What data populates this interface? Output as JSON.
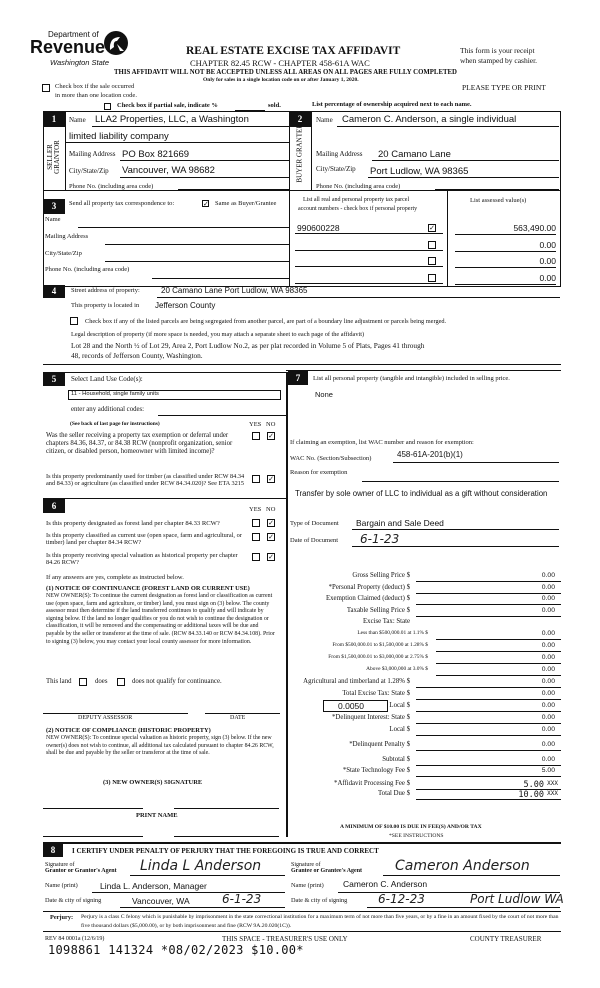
{
  "header": {
    "logo_top": "Department of",
    "logo_main": "Revenue",
    "logo_sub": "Washington State",
    "title": "REAL ESTATE EXCISE TAX AFFIDAVIT",
    "chapter": "CHAPTER 82.45 RCW - CHAPTER 458-61A WAC",
    "warning": "THIS AFFIDAVIT WILL NOT BE ACCEPTED UNLESS ALL AREAS ON ALL PAGES ARE FULLY COMPLETED",
    "only_for": "Only for sales in a single location code on or after January 1, 2020.",
    "receipt_1": "This form is your receipt",
    "receipt_2": "when stamped by cashier.",
    "type_print": "PLEASE TYPE OR PRINT",
    "multi_loc_1": "Check box if the sale occurred",
    "multi_loc_2": "in more than one location code.",
    "partial": "Check box if partial sale, indicate %",
    "sold": "sold.",
    "ownership": "List percentage of ownership acquired next to each name."
  },
  "seller": {
    "num": "1",
    "side_label": "SELLER GRANTOR",
    "name_label": "Name",
    "name_1": "LLA2 Properties, LLC, a Washington",
    "name_2": "limited liability company",
    "mail_label": "Mailing Address",
    "mail": "PO Box 821669",
    "city_label": "City/State/Zip",
    "city": "Vancouver, WA 98682",
    "phone_label": "Phone No. (including area code)",
    "phone": ""
  },
  "buyer": {
    "num": "2",
    "side_label": "BUYER GRANTEE",
    "name_label": "Name",
    "name": "Cameron C. Anderson, a single individual",
    "mail_label": "Mailing Address",
    "mail": "20 Camano Lane",
    "city_label": "City/State/Zip",
    "city": "Port Ludlow, WA  98365",
    "phone_label": "Phone No. (including area code)"
  },
  "tax_corr": {
    "num": "3",
    "label": "Send all property tax correspondence to:",
    "same_checked": true,
    "same_label": "Same as Buyer/Grantee",
    "name_label": "Name",
    "mail_label": "Mailing Address",
    "city_label": "City/State/Zip",
    "phone_label": "Phone No. (including area code)",
    "parcel_header_1": "List all real and personal property tax parcel",
    "parcel_header_2": "account numbers - check box if personal property",
    "value_header": "List assessed value(s)",
    "parcels": [
      {
        "number": "990600228",
        "personal": true,
        "value": "563,490.00"
      },
      {
        "number": "",
        "personal": false,
        "value": "0.00"
      },
      {
        "number": "",
        "personal": false,
        "value": "0.00"
      },
      {
        "number": "",
        "personal": false,
        "value": "0.00"
      }
    ]
  },
  "property": {
    "num": "4",
    "street_label": "Street address of property:",
    "street": "20 Camano Lane Port Ludlow, WA 98365",
    "located_label": "This property is located in",
    "county": "Jefferson County",
    "segregate": "Check box if any of the listed parcels are being segregated from another parcel, are part of a boundary line adjustment or parcels being merged.",
    "legal_label": "Legal description of property (if more space is needed, you may attach a separate sheet to each page of the affidavit)",
    "legal_1": "Lot 28 and the North ½ of Lot 29, Area 2, Port Ludlow No.2, as per plat recorded in Volume 5 of Plats, Pages 41 through",
    "legal_2": "48, records of Jefferson County, Washington."
  },
  "land_use": {
    "num": "5",
    "label": "Select Land Use Code(s):",
    "code": "11 - Household, single family units",
    "additional": "enter any additional codes:",
    "see_back": "(See back of last page for instructions)",
    "yes": "YES",
    "no": "NO",
    "q1": "Was the seller receiving a property tax exemption or deferral under chapters 84.36, 84.37, or 84.38 RCW (nonprofit organization, senior citizen, or disabled person, homeowner with limited income)?",
    "q2": "Is this property predominantly used for timber (as classified under RCW 84.34 and 84.33) or agriculture (as classified under RCW 84.34.020)? See ETA 3215"
  },
  "section6": {
    "num": "6",
    "yes": "YES",
    "no": "NO",
    "q1": "Is this property designated as forest land per chapter 84.33 RCW?",
    "q2": "Is this property classified as current use (open space, farm and agricultural, or timber) land per chapter 84.34 RCW?",
    "q3": "Is this property receiving special valuation as historical property per chapter 84.26 RCW?",
    "if_yes": "If any answers are yes, complete as instructed below.",
    "notice1_title": "(1) NOTICE OF CONTINUANCE (FOREST LAND OR CURRENT USE)",
    "notice1_body": "NEW OWNER(S): To continue the current designation as forest land or classification as current use (open space, farm and agriculture, or timber) land, you must sign on (3) below. The county assessor must then determine if the land transferred continues to qualify and will indicate by signing below. If the land no longer qualifies or you do not wish to continue the designation or classification, it will be removed and the compensating or additional taxes will be due and payable by the seller or transferor at the time of sale. (RCW 84.33.140 or RCW 84.34.108). Prior to signing (3) below, you may contact your local county assessor for more information.",
    "this_land": "This land",
    "does": "does",
    "does_not": "does not qualify for continuance.",
    "deputy": "DEPUTY ASSESSOR",
    "date": "DATE",
    "notice2_title": "(2) NOTICE OF COMPLIANCE (HISTORIC PROPERTY)",
    "notice2_body": "NEW OWNER(S): To continue special valuation as historic property, sign (3) below. If the new owner(s) does not wish to continue, all additional tax calculated pursuant to chapter 84.26 RCW, shall be due and payable by the seller or transferor at the time of sale.",
    "new_owner_sig": "(3) NEW OWNER(S) SIGNATURE",
    "print_name": "PRINT NAME"
  },
  "personal": {
    "num": "7",
    "label": "List all personal property (tangible and intangible) included in selling price.",
    "value": "None",
    "exempt_label": "If claiming an exemption, list WAC number and reason for exemption:",
    "wac_label": "WAC No. (Section/Subsection)",
    "wac": "458-61A-201(b)(1)",
    "reason_label": "Reason for exemption",
    "reason": "Transfer by sole owner of LLC to individual as a gift without consideration",
    "doc_type_label": "Type of Document",
    "doc_type": "Bargain and Sale Deed",
    "doc_date_label": "Date of Document",
    "doc_date": "6-1-23"
  },
  "tax": {
    "lines": [
      {
        "label": "Gross Selling Price  $",
        "value": "0.00",
        "small": false
      },
      {
        "label": "*Personal Property (deduct)  $",
        "value": "0.00",
        "small": false
      },
      {
        "label": "Exemption Claimed (deduct)  $",
        "value": "0.00",
        "small": false
      },
      {
        "label": "Taxable Selling Price  $",
        "value": "0.00",
        "small": false
      },
      {
        "label": "Excise Tax: State",
        "value": "",
        "small": false,
        "heading": true
      },
      {
        "label": "Less than $500,000.01 at 1.1%  $",
        "value": "0.00",
        "small": true
      },
      {
        "label": "From $500,000.01 to $1,500,000 at 1.28%  $",
        "value": "0.00",
        "small": true
      },
      {
        "label": "From $1,500,000.01 to $3,000,000 at 2.75%  $",
        "value": "0.00",
        "small": true
      },
      {
        "label": "Above $3,000,000 at 3.0%  $",
        "value": "0.00",
        "small": true
      },
      {
        "label": "Agricultural and timberland at 1.28%  $",
        "value": "0.00",
        "small": false
      },
      {
        "label": "Total Excise Tax: State  $",
        "value": "0.00",
        "small": false
      },
      {
        "label": "Local  $",
        "value": "0.00",
        "small": false,
        "rate": "0.0050"
      },
      {
        "label": "*Delinquent Interest: State  $",
        "value": "0.00",
        "small": false
      },
      {
        "label": "Local  $",
        "value": "0.00",
        "small": false
      },
      {
        "label": "*Delinquent Penalty  $",
        "value": "0.00",
        "small": false
      },
      {
        "label": "Subtotal  $",
        "value": "0.00",
        "small": false
      },
      {
        "label": "*State Technology Fee  $",
        "value": "5.00",
        "small": false
      },
      {
        "label": "*Affidavit Processing Fee  $",
        "value": "5.00",
        "small": false,
        "stamped": true
      },
      {
        "label": "Total Due  $",
        "value": "10.00",
        "small": false,
        "stamped": true
      }
    ],
    "minimum": "A MINIMUM OF $10.00 IS DUE IN FEE(S) AND/OR TAX",
    "see_instr": "*SEE INSTRUCTIONS"
  },
  "certify": {
    "num": "8",
    "title": "I CERTIFY UNDER PENALTY OF PERJURY THAT THE FOREGOING IS TRUE AND CORRECT",
    "grantor_sig_label_1": "Signature of",
    "grantor_sig_label_2": "Grantor or Grantor's Agent",
    "grantor_sig": "Linda L Anderson",
    "grantee_sig_label_1": "Signature of",
    "grantee_sig_label_2": "Grantee or Grantee's Agent",
    "grantee_sig": "Cameron Anderson",
    "name_label": "Name (print)",
    "grantor_name": "Linda L. Anderson, Manager",
    "grantee_name": "Cameron C. Anderson",
    "date_label": "Date & city of signing",
    "grantor_city": "Vancouver, WA",
    "grantor_date": "6-1-23",
    "grantee_date": "6-12-23",
    "grantee_city": "Port Ludlow WA",
    "perjury_label": "Perjury:",
    "perjury": "Perjury is a class C felony which is punishable by imprisonment in the state correctional institution for a maximum term of not more than five years, or by a fine in an amount fixed by the court of not more than five thousand dollars ($5,000.00), or by both imprisonment and fine (RCW 9A.20.020(1C))."
  },
  "footer": {
    "rev": "REV 84 0001a (12/6/19)",
    "treasurer_only": "THIS SPACE - TREASURER'S USE ONLY",
    "county_treasurer": "COUNTY TREASURER",
    "receipt_stamp": "1098861  141324  *08/02/2023  $10.00*"
  }
}
